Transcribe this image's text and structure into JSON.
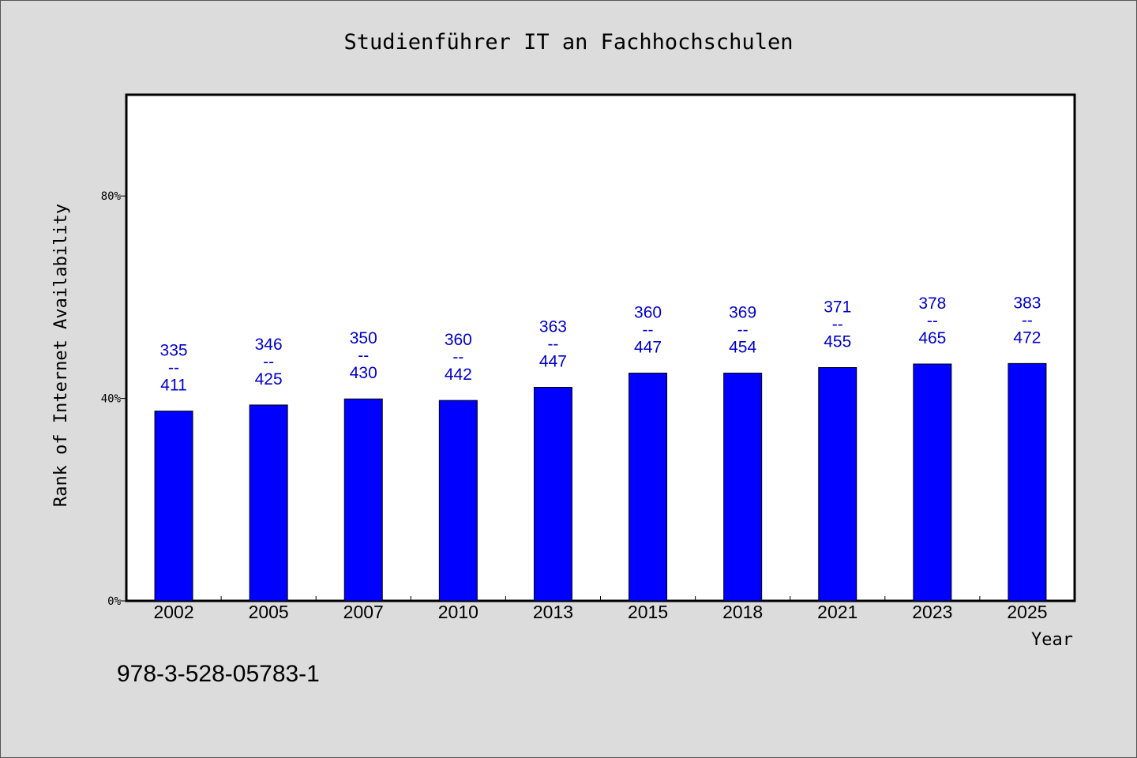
{
  "chart_data": {
    "type": "bar",
    "title": "Studienführer IT an Fachhochschulen",
    "xlabel": "Year",
    "ylabel": "Rank of Internet Availability",
    "categories": [
      "2002",
      "2005",
      "2007",
      "2010",
      "2013",
      "2015",
      "2018",
      "2021",
      "2023",
      "2025"
    ],
    "values": [
      37.5,
      38.7,
      39.9,
      39.6,
      42.2,
      45.0,
      45.0,
      46.1,
      46.8,
      46.9
    ],
    "ylim": [
      0,
      100
    ],
    "yticks": [
      0,
      40,
      80
    ],
    "ytick_labels": [
      "0%",
      "40%",
      "80%"
    ],
    "rank_labels": [
      {
        "rank": "335",
        "separator": "--",
        "total": "411"
      },
      {
        "rank": "346",
        "separator": "--",
        "total": "425"
      },
      {
        "rank": "350",
        "separator": "--",
        "total": "430"
      },
      {
        "rank": "360",
        "separator": "--",
        "total": "442"
      },
      {
        "rank": "363",
        "separator": "--",
        "total": "447"
      },
      {
        "rank": "360",
        "separator": "--",
        "total": "447"
      },
      {
        "rank": "369",
        "separator": "--",
        "total": "454"
      },
      {
        "rank": "371",
        "separator": "--",
        "total": "455"
      },
      {
        "rank": "378",
        "separator": "--",
        "total": "465"
      },
      {
        "rank": "383",
        "separator": "--",
        "total": "472"
      }
    ],
    "bar_color": "#0000ff",
    "label_color": "#0000cc",
    "grid": false,
    "legend": "none"
  },
  "footnote": "978-3-528-05783-1"
}
